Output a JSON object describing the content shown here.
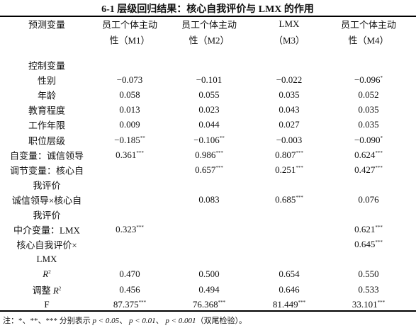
{
  "title": "6-1 层级回归结果：核心自我评价与 LMX 的作用",
  "header": {
    "columns": [
      [
        "预测变量"
      ],
      [
        "员工个体主动",
        "性（M1）"
      ],
      [
        "员工个体主动",
        "性（M2）"
      ],
      [
        "LMX",
        "（M3）"
      ],
      [
        "员工个体主动",
        "性（M4）"
      ]
    ]
  },
  "table": {
    "rows": [
      {
        "label": [
          "控制变量"
        ],
        "cells": [
          null,
          null,
          null,
          null
        ]
      },
      {
        "label": [
          "性别"
        ],
        "cells": [
          "−0.073",
          "−0.101",
          "−0.022",
          {
            "text": "−0.096",
            "sup": "*"
          }
        ]
      },
      {
        "label": [
          "年龄"
        ],
        "cells": [
          "0.058",
          "0.055",
          "0.035",
          "0.052"
        ]
      },
      {
        "label": [
          "教育程度"
        ],
        "cells": [
          "0.013",
          "0.023",
          "0.043",
          "0.035"
        ]
      },
      {
        "label": [
          "工作年限"
        ],
        "cells": [
          "0.009",
          "0.044",
          "0.027",
          "0.035"
        ]
      },
      {
        "label": [
          "职位层级"
        ],
        "cells": [
          {
            "text": "−0.185",
            "sup": "**"
          },
          {
            "text": "−0.106",
            "sup": "**"
          },
          "−0.003",
          {
            "text": "−0.090",
            "sup": "*"
          }
        ]
      },
      {
        "label": [
          "自变量：诚信领导"
        ],
        "cells": [
          {
            "text": "0.361",
            "sup": "***"
          },
          {
            "text": "0.986",
            "sup": "***"
          },
          {
            "text": "0.807",
            "sup": "***"
          },
          {
            "text": "0.624",
            "sup": "***"
          }
        ]
      },
      {
        "label": [
          "调节变量：核心自",
          "我评价"
        ],
        "cells": [
          null,
          {
            "text": "0.657",
            "sup": "***"
          },
          {
            "text": "0.251",
            "sup": "***"
          },
          {
            "text": "0.427",
            "sup": "***"
          }
        ]
      },
      {
        "label": [
          "诚信领导×核心自",
          "我评价"
        ],
        "cells": [
          null,
          "0.083",
          {
            "text": "0.685",
            "sup": "***"
          },
          "0.076"
        ]
      },
      {
        "label": [
          "中介变量：LMX"
        ],
        "cells": [
          {
            "text": "0.323",
            "sup": "***"
          },
          null,
          null,
          {
            "text": "0.621",
            "sup": "***"
          }
        ]
      },
      {
        "label": [
          "核心自我评价×",
          "LMX"
        ],
        "cells": [
          null,
          null,
          null,
          {
            "text": "0.645",
            "sup": "***"
          }
        ]
      },
      {
        "label": [
          {
            "var": "R",
            "sup": "2"
          }
        ],
        "cells": [
          "0.470",
          "0.500",
          "0.654",
          "0.550"
        ]
      },
      {
        "label": [
          {
            "pre": "调整 ",
            "var": "R",
            "sup": "2"
          }
        ],
        "cells": [
          "0.456",
          "0.494",
          "0.646",
          "0.533"
        ]
      },
      {
        "label": [
          "F"
        ],
        "cells": [
          {
            "text": "87.375",
            "sup": "***"
          },
          {
            "text": "76.368",
            "sup": "***"
          },
          {
            "text": "81.449",
            "sup": "***"
          },
          {
            "text": "33.101",
            "sup": "***"
          }
        ]
      }
    ]
  },
  "note": [
    {
      "text": "注：*、**、*** 分别表示 "
    },
    {
      "text": "p < 0.05",
      "italic": true
    },
    {
      "text": "、 "
    },
    {
      "text": "p < 0.01",
      "italic": true
    },
    {
      "text": "、 "
    },
    {
      "text": "p < 0.001",
      "italic": true
    },
    {
      "text": "（双尾检验）。"
    }
  ]
}
